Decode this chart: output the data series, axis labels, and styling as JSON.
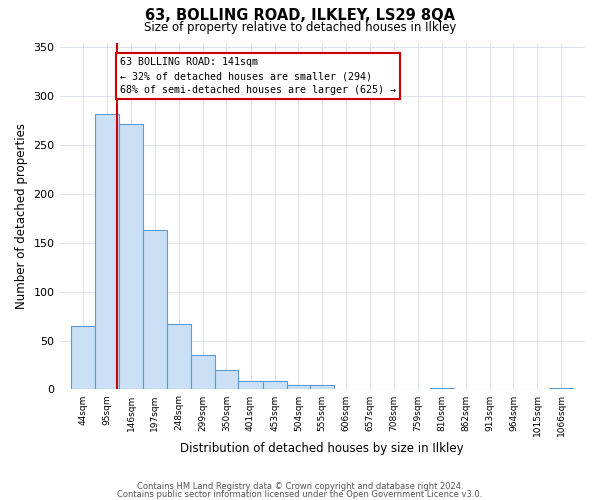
{
  "title": "63, BOLLING ROAD, ILKLEY, LS29 8QA",
  "subtitle": "Size of property relative to detached houses in Ilkley",
  "xlabel": "Distribution of detached houses by size in Ilkley",
  "ylabel": "Number of detached properties",
  "bar_labels": [
    "44sqm",
    "95sqm",
    "146sqm",
    "197sqm",
    "248sqm",
    "299sqm",
    "350sqm",
    "401sqm",
    "453sqm",
    "504sqm",
    "555sqm",
    "606sqm",
    "657sqm",
    "708sqm",
    "759sqm",
    "810sqm",
    "862sqm",
    "913sqm",
    "964sqm",
    "1015sqm",
    "1066sqm"
  ],
  "bar_heights": [
    65,
    282,
    272,
    163,
    67,
    35,
    20,
    9,
    9,
    5,
    5,
    0,
    0,
    0,
    0,
    2,
    0,
    0,
    0,
    0,
    2
  ],
  "bin_edges": [
    44,
    95,
    146,
    197,
    248,
    299,
    350,
    401,
    453,
    504,
    555,
    606,
    657,
    708,
    759,
    810,
    862,
    913,
    964,
    1015,
    1066,
    1117
  ],
  "bar_color": "#cce0f5",
  "bar_edge_color": "#5b9bd5",
  "red_line_x": 141,
  "annotation_title": "63 BOLLING ROAD: 141sqm",
  "annotation_line1": "← 32% of detached houses are smaller (294)",
  "annotation_line2": "68% of semi-detached houses are larger (625) →",
  "annotation_box_color": "#ffffff",
  "annotation_border_color": "#cc0000",
  "ylim": [
    0,
    355
  ],
  "yticks": [
    0,
    50,
    100,
    150,
    200,
    250,
    300,
    350
  ],
  "footer_line1": "Contains HM Land Registry data © Crown copyright and database right 2024.",
  "footer_line2": "Contains public sector information licensed under the Open Government Licence v3.0.",
  "background_color": "#ffffff",
  "grid_color": "#d0d8e4"
}
